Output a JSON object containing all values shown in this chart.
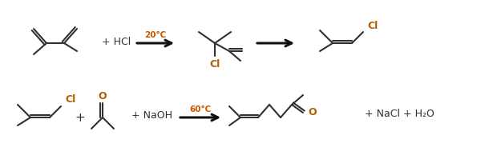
{
  "bg_color": "#ffffff",
  "lc": "#303030",
  "ac": "#111111",
  "tc": "#303030",
  "cl_color": "#b06000",
  "o_color": "#b06000",
  "cond1": "20°C",
  "cond2": "60°C",
  "reagent1": "+ HCl",
  "reagent2": "+ NaOH",
  "plus": "+",
  "byproducts": "+ NaCl + H₂O",
  "lw": 1.5,
  "dlw": 1.5,
  "alw": 2.2
}
